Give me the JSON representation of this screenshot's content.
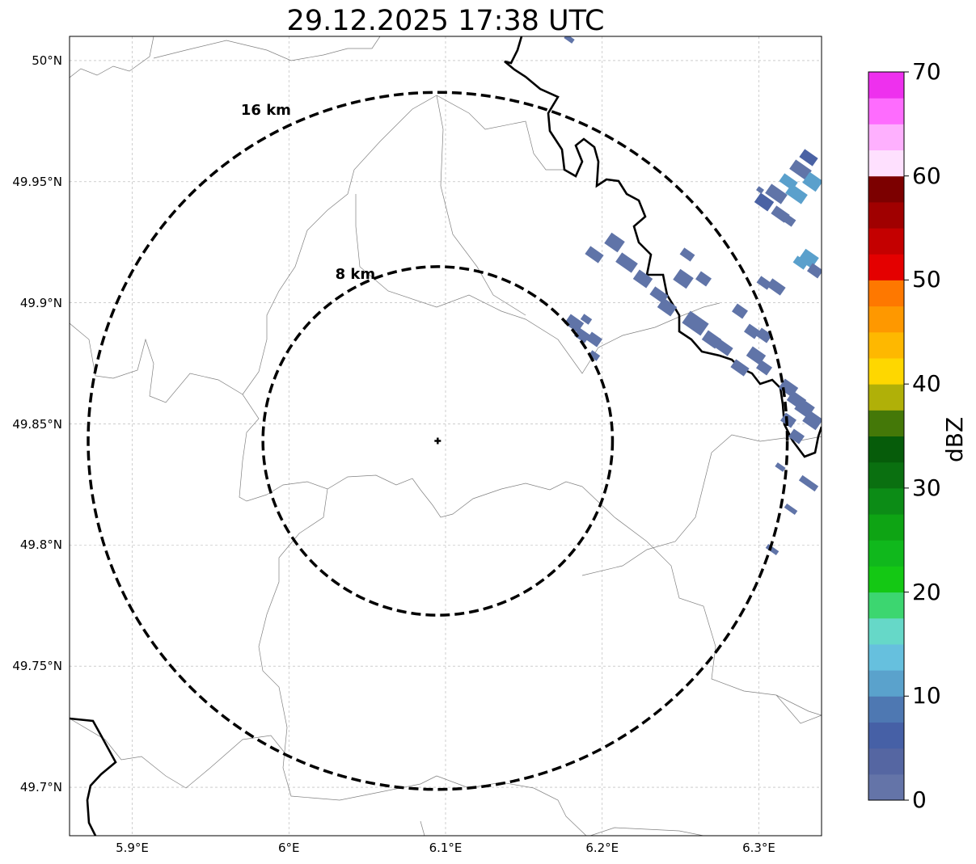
{
  "title": "29.12.2025 17:38 UTC",
  "map": {
    "extent": {
      "lon": [
        5.86,
        6.34
      ],
      "lat": [
        49.68,
        50.01
      ]
    },
    "radar_site": {
      "lon": 6.095,
      "lat": 49.843
    },
    "range_rings": [
      {
        "label": "8 km",
        "radius_km": 8
      },
      {
        "label": "16 km",
        "radius_km": 16
      }
    ],
    "grid": true,
    "lat_ticks": [
      "49.7°N",
      "49.75°N",
      "49.8°N",
      "49.85°N",
      "49.9°N",
      "49.95°N",
      "50°N"
    ],
    "lon_ticks": [
      "5.9°E",
      "6°E",
      "6.1°E",
      "6.2°E",
      "6.3°E"
    ],
    "colors": {
      "ring": "#000000",
      "border_thick": "#000000",
      "border_thin": "#808080",
      "grid": "#b0b0b0",
      "echo_main": "#6074a8",
      "echo_light": "#5aa0cc",
      "echo_dark": "#4a62a4"
    }
  },
  "colorbar": {
    "label": "dBZ",
    "min": 0,
    "max": 70,
    "ticks": [
      "0",
      "10",
      "20",
      "30",
      "40",
      "50",
      "60",
      "70"
    ],
    "colors": [
      "#6474a8",
      "#5566a2",
      "#4660a6",
      "#4e78b2",
      "#5aa2cc",
      "#66c0de",
      "#66d8c8",
      "#3cd670",
      "#14c814",
      "#10b81c",
      "#0ea414",
      "#0c8c16",
      "#0a7010",
      "#065c0a",
      "#447808",
      "#b0b008",
      "#fed700",
      "#feb800",
      "#fe9800",
      "#fe7800",
      "#e40000",
      "#c40000",
      "#a00000",
      "#7c0000",
      "#fee0fe",
      "#feb0fe",
      "#fe6cfe",
      "#ee30ee"
    ]
  }
}
